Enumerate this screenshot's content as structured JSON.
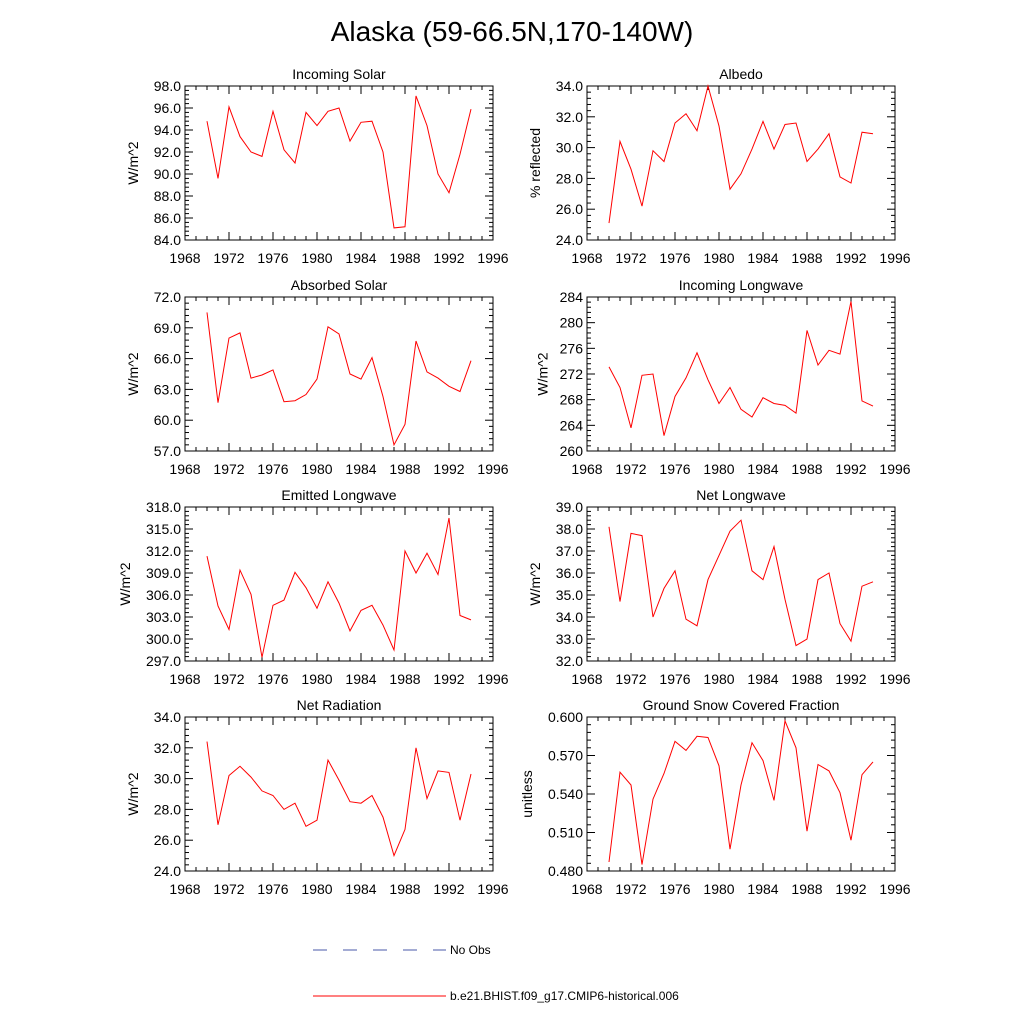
{
  "figure": {
    "title": "Alaska (59-66.5N,170-140W)"
  },
  "colors": {
    "model": "#ff0000",
    "obs": "#4a5aa8",
    "axis": "#000000"
  },
  "legend": {
    "obs_label": "No Obs",
    "model_label": "b.e21.BHIST.f09_g17.CMIP6-historical.006"
  },
  "chart_data": [
    {
      "type": "line",
      "title": "Incoming Solar",
      "xlabel": "",
      "ylabel": "W/m^2",
      "xlim": [
        1968,
        1996
      ],
      "ylim": [
        84,
        98
      ],
      "x_ticks": [
        1968,
        1972,
        1976,
        1980,
        1984,
        1988,
        1992,
        1996
      ],
      "y_ticks": [
        "84.0",
        "86.0",
        "88.0",
        "90.0",
        "92.0",
        "94.0",
        "96.0",
        "98.0"
      ],
      "series": [
        {
          "name": "b.e21.BHIST.f09_g17.CMIP6-historical.006",
          "x": [
            1970,
            1971,
            1972,
            1973,
            1974,
            1975,
            1976,
            1977,
            1978,
            1979,
            1980,
            1981,
            1982,
            1983,
            1984,
            1985,
            1986,
            1987,
            1988,
            1989,
            1990,
            1991,
            1992,
            1993,
            1994
          ],
          "values": [
            94.8,
            89.6,
            96.1,
            93.4,
            92.0,
            91.6,
            95.7,
            92.2,
            91.0,
            95.6,
            94.4,
            95.7,
            96.0,
            93.0,
            94.7,
            94.8,
            92.0,
            85.1,
            85.2,
            97.1,
            94.4,
            90.0,
            88.3,
            91.8,
            95.9
          ]
        }
      ]
    },
    {
      "type": "line",
      "title": "Albedo",
      "xlabel": "",
      "ylabel": "% reflected",
      "xlim": [
        1968,
        1996
      ],
      "ylim": [
        24,
        34
      ],
      "x_ticks": [
        1968,
        1972,
        1976,
        1980,
        1984,
        1988,
        1992,
        1996
      ],
      "y_ticks": [
        "24.0",
        "26.0",
        "28.0",
        "30.0",
        "32.0",
        "34.0"
      ],
      "series": [
        {
          "name": "b.e21.BHIST.f09_g17.CMIP6-historical.006",
          "x": [
            1970,
            1971,
            1972,
            1973,
            1974,
            1975,
            1976,
            1977,
            1978,
            1979,
            1980,
            1981,
            1982,
            1983,
            1984,
            1985,
            1986,
            1987,
            1988,
            1989,
            1990,
            1991,
            1992,
            1993,
            1994
          ],
          "values": [
            25.1,
            30.4,
            28.6,
            26.2,
            29.8,
            29.1,
            31.6,
            32.2,
            31.1,
            34.0,
            31.4,
            27.3,
            28.3,
            29.9,
            31.7,
            29.9,
            31.5,
            31.6,
            29.1,
            29.9,
            30.9,
            28.1,
            27.7,
            31.0,
            30.9
          ]
        }
      ]
    },
    {
      "type": "line",
      "title": "Absorbed Solar",
      "xlabel": "",
      "ylabel": "W/m^2",
      "xlim": [
        1968,
        1996
      ],
      "ylim": [
        57,
        72
      ],
      "x_ticks": [
        1968,
        1972,
        1976,
        1980,
        1984,
        1988,
        1992,
        1996
      ],
      "y_ticks": [
        "57.0",
        "60.0",
        "63.0",
        "66.0",
        "69.0",
        "72.0"
      ],
      "series": [
        {
          "name": "b.e21.BHIST.f09_g17.CMIP6-historical.006",
          "x": [
            1970,
            1971,
            1972,
            1973,
            1974,
            1975,
            1976,
            1977,
            1978,
            1979,
            1980,
            1981,
            1982,
            1983,
            1984,
            1985,
            1986,
            1987,
            1988,
            1989,
            1990,
            1991,
            1992,
            1993,
            1994
          ],
          "values": [
            70.5,
            61.7,
            68.0,
            68.5,
            64.1,
            64.4,
            64.9,
            61.8,
            61.9,
            62.5,
            64.0,
            69.1,
            68.4,
            64.5,
            64.0,
            66.1,
            62.3,
            57.6,
            59.6,
            67.7,
            64.7,
            64.1,
            63.3,
            62.8,
            65.8
          ]
        }
      ]
    },
    {
      "type": "line",
      "title": "Incoming Longwave",
      "xlabel": "",
      "ylabel": "W/m^2",
      "xlim": [
        1968,
        1996
      ],
      "ylim": [
        260,
        284
      ],
      "x_ticks": [
        1968,
        1972,
        1976,
        1980,
        1984,
        1988,
        1992,
        1996
      ],
      "y_ticks": [
        "260",
        "264",
        "268",
        "272",
        "276",
        "280",
        "284"
      ],
      "series": [
        {
          "name": "b.e21.BHIST.f09_g17.CMIP6-historical.006",
          "x": [
            1970,
            1971,
            1972,
            1973,
            1974,
            1975,
            1976,
            1977,
            1978,
            1979,
            1980,
            1981,
            1982,
            1983,
            1984,
            1985,
            1986,
            1987,
            1988,
            1989,
            1990,
            1991,
            1992,
            1993,
            1994
          ],
          "values": [
            273.1,
            269.9,
            263.6,
            271.8,
            272.0,
            262.4,
            268.5,
            271.4,
            275.3,
            271.1,
            267.4,
            269.9,
            266.5,
            265.3,
            268.3,
            267.4,
            267.1,
            265.9,
            278.8,
            273.4,
            275.7,
            275.1,
            283.3,
            267.8,
            267.0
          ]
        }
      ]
    },
    {
      "type": "line",
      "title": "Emitted Longwave",
      "xlabel": "",
      "ylabel": "W/m^2",
      "xlim": [
        1968,
        1996
      ],
      "ylim": [
        297,
        318
      ],
      "x_ticks": [
        1968,
        1972,
        1976,
        1980,
        1984,
        1988,
        1992,
        1996
      ],
      "y_ticks": [
        "297.0",
        "300.0",
        "303.0",
        "306.0",
        "309.0",
        "312.0",
        "315.0",
        "318.0"
      ],
      "series": [
        {
          "name": "b.e21.BHIST.f09_g17.CMIP6-historical.006",
          "x": [
            1970,
            1971,
            1972,
            1973,
            1974,
            1975,
            1976,
            1977,
            1978,
            1979,
            1980,
            1981,
            1982,
            1983,
            1984,
            1985,
            1986,
            1987,
            1988,
            1989,
            1990,
            1991,
            1992,
            1993,
            1994
          ],
          "values": [
            311.3,
            304.5,
            301.3,
            309.4,
            306.1,
            297.5,
            304.6,
            305.3,
            309.1,
            307.0,
            304.2,
            307.8,
            304.9,
            301.1,
            303.9,
            304.6,
            301.9,
            298.5,
            312.0,
            309.0,
            311.7,
            308.8,
            316.5,
            303.2,
            302.6
          ]
        }
      ]
    },
    {
      "type": "line",
      "title": "Net Longwave",
      "xlabel": "",
      "ylabel": "W/m^2",
      "xlim": [
        1968,
        1996
      ],
      "ylim": [
        32,
        39
      ],
      "x_ticks": [
        1968,
        1972,
        1976,
        1980,
        1984,
        1988,
        1992,
        1996
      ],
      "y_ticks": [
        "32.0",
        "33.0",
        "34.0",
        "35.0",
        "36.0",
        "37.0",
        "38.0",
        "39.0"
      ],
      "series": [
        {
          "name": "b.e21.BHIST.f09_g17.CMIP6-historical.006",
          "x": [
            1970,
            1971,
            1972,
            1973,
            1974,
            1975,
            1976,
            1977,
            1978,
            1979,
            1980,
            1981,
            1982,
            1983,
            1984,
            1985,
            1986,
            1987,
            1988,
            1989,
            1990,
            1991,
            1992,
            1993,
            1994
          ],
          "values": [
            38.1,
            34.7,
            37.8,
            37.7,
            34.0,
            35.3,
            36.1,
            33.9,
            33.6,
            35.7,
            36.8,
            37.9,
            38.4,
            36.1,
            35.7,
            37.2,
            34.8,
            32.7,
            33.0,
            35.7,
            36.0,
            33.7,
            32.9,
            35.4,
            35.6
          ]
        }
      ]
    },
    {
      "type": "line",
      "title": "Net Radiation",
      "xlabel": "",
      "ylabel": "W/m^2",
      "xlim": [
        1968,
        1996
      ],
      "ylim": [
        24,
        34
      ],
      "x_ticks": [
        1968,
        1972,
        1976,
        1980,
        1984,
        1988,
        1992,
        1996
      ],
      "y_ticks": [
        "24.0",
        "26.0",
        "28.0",
        "30.0",
        "32.0",
        "34.0"
      ],
      "series": [
        {
          "name": "b.e21.BHIST.f09_g17.CMIP6-historical.006",
          "x": [
            1970,
            1971,
            1972,
            1973,
            1974,
            1975,
            1976,
            1977,
            1978,
            1979,
            1980,
            1981,
            1982,
            1983,
            1984,
            1985,
            1986,
            1987,
            1988,
            1989,
            1990,
            1991,
            1992,
            1993,
            1994
          ],
          "values": [
            32.4,
            27.0,
            30.2,
            30.8,
            30.1,
            29.2,
            28.9,
            28.0,
            28.4,
            26.9,
            27.3,
            31.2,
            29.9,
            28.5,
            28.4,
            28.9,
            27.5,
            25.0,
            26.7,
            32.0,
            28.7,
            30.5,
            30.4,
            27.3,
            30.3
          ]
        }
      ]
    },
    {
      "type": "line",
      "title": "Ground Snow Covered Fraction",
      "xlabel": "",
      "ylabel": "unitless",
      "xlim": [
        1968,
        1996
      ],
      "ylim": [
        0.48,
        0.6
      ],
      "x_ticks": [
        1968,
        1972,
        1976,
        1980,
        1984,
        1988,
        1992,
        1996
      ],
      "y_ticks": [
        "0.480",
        "0.510",
        "0.540",
        "0.570",
        "0.600"
      ],
      "series": [
        {
          "name": "b.e21.BHIST.f09_g17.CMIP6-historical.006",
          "x": [
            1970,
            1971,
            1972,
            1973,
            1974,
            1975,
            1976,
            1977,
            1978,
            1979,
            1980,
            1981,
            1982,
            1983,
            1984,
            1985,
            1986,
            1987,
            1988,
            1989,
            1990,
            1991,
            1992,
            1993,
            1994
          ],
          "values": [
            0.487,
            0.557,
            0.547,
            0.485,
            0.536,
            0.556,
            0.581,
            0.574,
            0.585,
            0.584,
            0.562,
            0.497,
            0.547,
            0.58,
            0.566,
            0.535,
            0.597,
            0.576,
            0.511,
            0.563,
            0.558,
            0.541,
            0.504,
            0.555,
            0.565
          ]
        }
      ]
    }
  ]
}
